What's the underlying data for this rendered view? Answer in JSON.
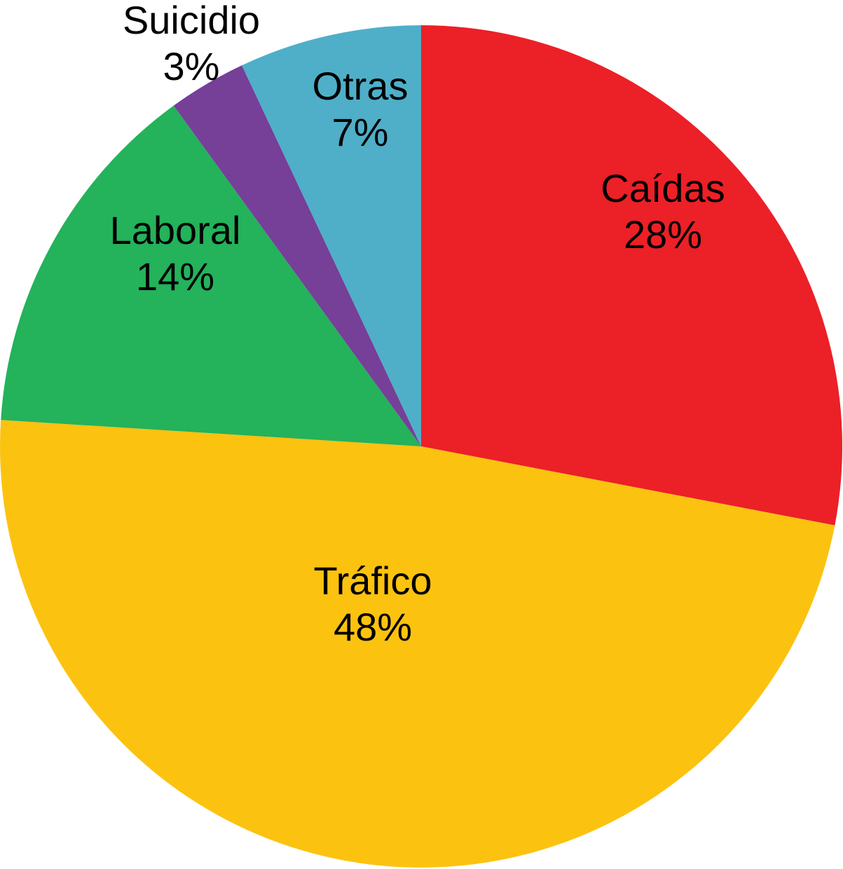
{
  "chart_data": {
    "type": "pie",
    "start_angle_deg": 0,
    "direction": "clockwise",
    "slices": [
      {
        "label": "Caídas",
        "value": 28,
        "value_label": "28%",
        "color": "#ec2027"
      },
      {
        "label": "Tráfico",
        "value": 48,
        "value_label": "48%",
        "color": "#fcc210"
      },
      {
        "label": "Laboral",
        "value": 14,
        "value_label": "14%",
        "color": "#24b25b"
      },
      {
        "label": "Suicidio",
        "value": 3,
        "value_label": "3%",
        "color": "#763f98"
      },
      {
        "label": "Otras",
        "value": 7,
        "value_label": "7%",
        "color": "#4fafc8"
      }
    ]
  }
}
